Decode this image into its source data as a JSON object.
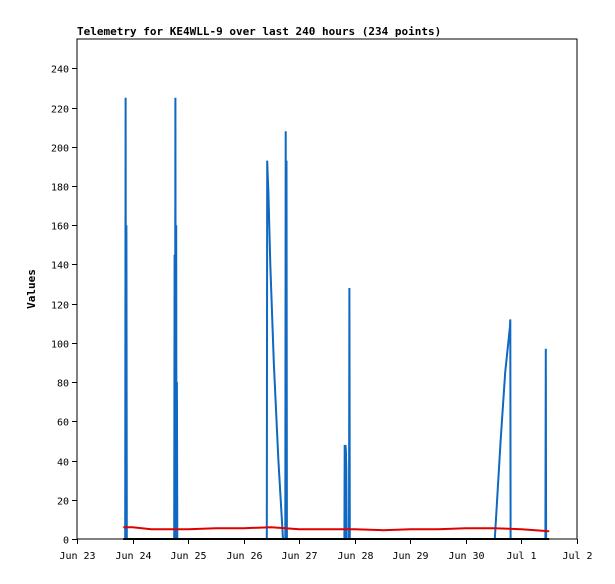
{
  "chart_data": {
    "type": "line",
    "title": "Telemetry for KE4WLL-9 over last 240 hours (234 points)",
    "xlabel": "",
    "ylabel": "Values",
    "ylim": [
      0,
      255
    ],
    "y_ticks": [
      0,
      20,
      40,
      60,
      80,
      100,
      120,
      140,
      160,
      180,
      200,
      220,
      240
    ],
    "x_ticks": [
      "Jun 23",
      "Jun 24",
      "Jun 25",
      "Jun 26",
      "Jun 27",
      "Jun 28",
      "Jun 29",
      "Jun 30",
      "Jul 1",
      "Jul 2"
    ],
    "xlim": [
      "Jun 23 00:00",
      "Jul 2 00:00"
    ],
    "grid": false,
    "legend": "none",
    "series": [
      {
        "color": "#0f68c1",
        "x": [
          "Jun 23 20:50",
          "Jun 23 21:00",
          "Jun 23 21:10",
          "Jun 23 21:20",
          "Jun 23 21:30",
          "Jun 23 21:40",
          "Jun 23 21:50",
          "Jun 23 22:00",
          "Jun 24 18:00",
          "Jun 24 18:10",
          "Jun 24 18:20",
          "Jun 24 18:30",
          "Jun 24 18:40",
          "Jun 24 18:50",
          "Jun 24 19:00",
          "Jun 24 19:10",
          "Jun 24 19:20",
          "Jun 24 19:30",
          "Jun 24 19:40",
          "Jun 24 19:50",
          "Jun 24 20:00",
          "Jun 26 10:00",
          "Jun 26 10:10",
          "Jun 26 10:20",
          "Jun 26 10:40",
          "Jun 26 11:30",
          "Jun 26 13:00",
          "Jun 26 15:00",
          "Jun 26 17:00",
          "Jun 26 18:00",
          "Jun 26 18:10",
          "Jun 26 18:20",
          "Jun 26 18:30",
          "Jun 26 18:40",
          "Jun 26 18:50",
          "Jun 26 19:00",
          "Jun 27 19:30",
          "Jun 27 19:40",
          "Jun 27 19:50",
          "Jun 27 20:00",
          "Jun 27 20:10",
          "Jun 27 20:20",
          "Jun 27 20:30",
          "Jun 27 20:40",
          "Jun 27 21:30",
          "Jun 27 21:40",
          "Jun 27 21:50",
          "Jun 30 12:30",
          "Jun 30 15:00",
          "Jun 30 17:00",
          "Jun 30 19:00",
          "Jun 30 19:10",
          "Jun 30 19:20",
          "Jul 1 10:20",
          "Jul 1 10:30",
          "Jul 1 10:40"
        ],
        "y": [
          0,
          225,
          0,
          160,
          0,
          0,
          0,
          0,
          0,
          145,
          0,
          225,
          0,
          160,
          0,
          80,
          0,
          0,
          0,
          0,
          0,
          0,
          193,
          187,
          177,
          140,
          90,
          40,
          0,
          0,
          208,
          0,
          193,
          0,
          0,
          0,
          0,
          48,
          0,
          48,
          45,
          35,
          0,
          0,
          0,
          128,
          0,
          0,
          50,
          85,
          108,
          112,
          0,
          0,
          97,
          0
        ]
      },
      {
        "color": "#e00000",
        "x": [
          "Jun 23 20:00",
          "Jun 24 00:00",
          "Jun 24 08:00",
          "Jun 24 16:00",
          "Jun 25 00:00",
          "Jun 25 12:00",
          "Jun 26 00:00",
          "Jun 26 12:00",
          "Jun 26 18:00",
          "Jun 27 00:00",
          "Jun 27 12:00",
          "Jun 28 00:00",
          "Jun 28 12:00",
          "Jun 29 00:00",
          "Jun 29 12:00",
          "Jun 30 00:00",
          "Jun 30 12:00",
          "Jul 1 00:00",
          "Jul 1 12:00"
        ],
        "y": [
          6,
          6,
          5,
          5,
          5,
          5.5,
          5.5,
          6,
          5.5,
          5,
          5,
          5,
          4.5,
          5,
          5,
          5.5,
          5.5,
          5,
          4
        ]
      },
      {
        "color": "#000000",
        "x": [
          "Jun 23 20:00",
          "Jul 1 12:00"
        ],
        "y": [
          0,
          0
        ]
      }
    ]
  }
}
